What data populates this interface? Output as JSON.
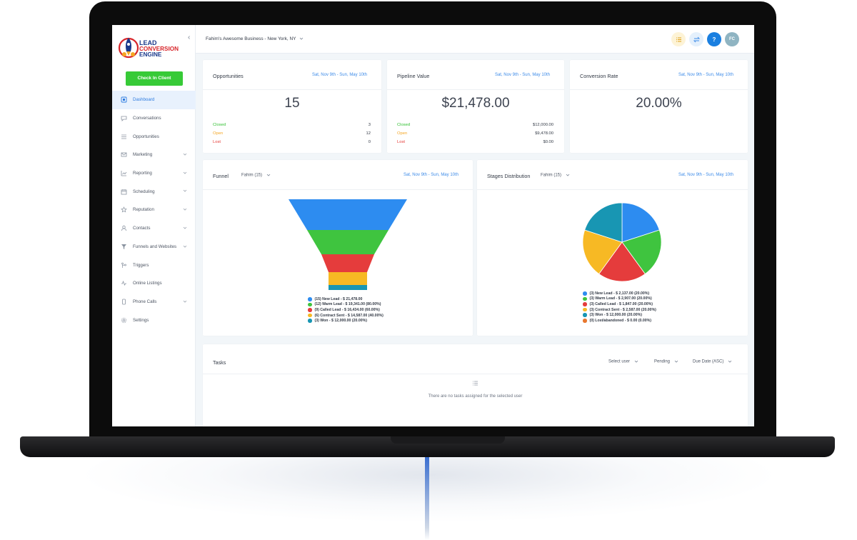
{
  "brand": {
    "line1": "LEAD",
    "line2": "CONVERSION",
    "line3": "ENGINE",
    "colors": {
      "red": "#d8262b",
      "blue": "#1b3a8c",
      "green": "#37ca37",
      "accent": "#3d8be8"
    }
  },
  "sidebar": {
    "checkin_label": "Check In Client",
    "items": [
      {
        "label": "Dashboard",
        "icon": "dashboard-icon",
        "active": true
      },
      {
        "label": "Conversations",
        "icon": "chat-icon"
      },
      {
        "label": "Opportunities",
        "icon": "list-icon"
      },
      {
        "label": "Marketing",
        "icon": "mail-icon",
        "expandable": true
      },
      {
        "label": "Reporting",
        "icon": "chart-icon",
        "expandable": true
      },
      {
        "label": "Scheduling",
        "icon": "calendar-icon",
        "expandable": true
      },
      {
        "label": "Reputation",
        "icon": "star-icon",
        "expandable": true
      },
      {
        "label": "Contacts",
        "icon": "user-icon",
        "expandable": true
      },
      {
        "label": "Funnels and Websites",
        "icon": "filter-icon",
        "expandable": true
      },
      {
        "label": "Triggers",
        "icon": "branch-icon"
      },
      {
        "label": "Online Listings",
        "icon": "pulse-icon"
      },
      {
        "label": "Phone Calls",
        "icon": "phone-icon",
        "expandable": true
      },
      {
        "label": "Settings",
        "icon": "gear-icon"
      }
    ]
  },
  "topbar": {
    "location": "Fahim's Awesome Business - New York, NY",
    "help_label": "?",
    "avatar_initials": "FC"
  },
  "date_range": "Sat, Nov 9th - Sun, May 10th",
  "stats": {
    "opportunities": {
      "title": "Opportunities",
      "total": "15",
      "rows": [
        {
          "label": "Closed",
          "value": "3"
        },
        {
          "label": "Open",
          "value": "12"
        },
        {
          "label": "Lost",
          "value": "0"
        }
      ]
    },
    "pipeline": {
      "title": "Pipeline Value",
      "total": "$21,478.00",
      "rows": [
        {
          "label": "Closed",
          "value": "$12,000.00"
        },
        {
          "label": "Open",
          "value": "$9,478.00"
        },
        {
          "label": "Lost",
          "value": "$0.00"
        }
      ]
    },
    "conversion": {
      "title": "Conversion Rate",
      "total": "20.00%"
    },
    "row_colors": {
      "closed": "#2fbf2f",
      "open": "#f5a623",
      "lost": "#e53935"
    }
  },
  "funnel": {
    "title": "Funnel",
    "user_select": "Fahim (15)",
    "legend": [
      {
        "text": "(15) New Lead - $ 21,478.00",
        "color": "#2d8cf0"
      },
      {
        "text": "(12) Warm Lead - $ 19,341.00 (80.00%)",
        "color": "#3fc43f"
      },
      {
        "text": "(9) Called Lead - $ 16,434.00 (60.00%)",
        "color": "#e53c3c"
      },
      {
        "text": "(6) Contract Sent - $ 14,587.00 (40.00%)",
        "color": "#f7b924"
      },
      {
        "text": "(3) Won - $ 12,000.00 (20.00%)",
        "color": "#1896b3"
      }
    ]
  },
  "chart_data": {
    "type": "pie",
    "title": "Stages Distribution",
    "categories": [
      "New Lead",
      "Warm Lead",
      "Called Lead",
      "Contract Sent",
      "Won",
      "Lost/abandoned"
    ],
    "values": [
      20,
      20,
      20,
      20,
      20,
      0
    ],
    "colors": [
      "#2d8cf0",
      "#3fc43f",
      "#e53c3c",
      "#f7b924",
      "#1896b3",
      "#e8772e"
    ]
  },
  "stages": {
    "title": "Stages Distribution",
    "user_select": "Fahim (15)",
    "legend": [
      {
        "text": "(3) New Lead - $ 2,137.00 (20.00%)",
        "color": "#2d8cf0"
      },
      {
        "text": "(3) Warm Lead - $ 2,907.00 (20.00%)",
        "color": "#3fc43f"
      },
      {
        "text": "(3) Called Lead - $ 1,847.00 (20.00%)",
        "color": "#e53c3c"
      },
      {
        "text": "(3) Contract Sent - $ 2,587.00 (20.00%)",
        "color": "#f7b924"
      },
      {
        "text": "(3) Won - $ 12,000.00 (20.00%)",
        "color": "#1896b3"
      },
      {
        "text": "(0) Lost/abandoned - $ 0.00 (0.00%)",
        "color": "#e8772e"
      }
    ]
  },
  "tasks": {
    "title": "Tasks",
    "select_user": "Select user",
    "status": "Pending",
    "sort": "Due Date (ASC)",
    "empty": "There are no tasks assigned for the selected user"
  }
}
